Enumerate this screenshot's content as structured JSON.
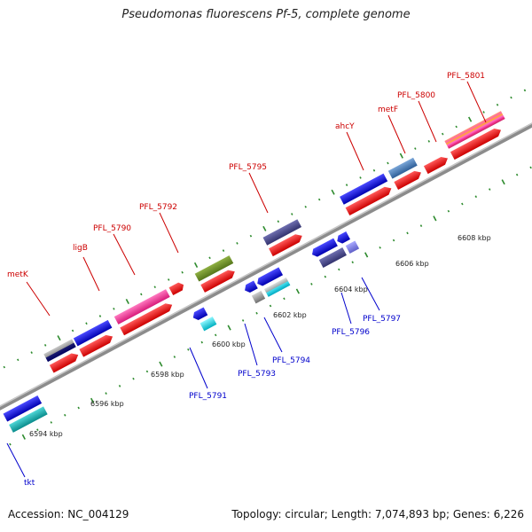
{
  "title": "Pseudomonas fluorescens Pf-5, complete genome",
  "footer": {
    "accession": "Accession: NC_004129",
    "summary": "Topology: circular; Length: 7,074,893 bp; Genes: 6,226"
  },
  "kbp_labels": [
    {
      "id": "kbp-6594",
      "text": "6594 kbp"
    },
    {
      "id": "kbp-6596",
      "text": "6596 kbp"
    },
    {
      "id": "kbp-6598",
      "text": "6598 kbp"
    },
    {
      "id": "kbp-6600",
      "text": "6600 kbp"
    },
    {
      "id": "kbp-6602",
      "text": "6602 kbp"
    },
    {
      "id": "kbp-6604",
      "text": "6604 kbp"
    },
    {
      "id": "kbp-6606",
      "text": "6606 kbp"
    },
    {
      "id": "kbp-6608",
      "text": "6608 kbp"
    }
  ],
  "forward_genes": [
    {
      "id": "metK",
      "text": "metK"
    },
    {
      "id": "ligB",
      "text": "ligB"
    },
    {
      "id": "PFL_5790",
      "text": "PFL_5790"
    },
    {
      "id": "PFL_5792",
      "text": "PFL_5792"
    },
    {
      "id": "PFL_5795",
      "text": "PFL_5795"
    },
    {
      "id": "ahcY",
      "text": "ahcY"
    },
    {
      "id": "metF",
      "text": "metF"
    },
    {
      "id": "PFL_5800",
      "text": "PFL_5800"
    },
    {
      "id": "PFL_5801",
      "text": "PFL_5801"
    }
  ],
  "reverse_genes": [
    {
      "id": "tkt",
      "text": "tkt"
    },
    {
      "id": "PFL_5791",
      "text": "PFL_5791"
    },
    {
      "id": "PFL_5793",
      "text": "PFL_5793"
    },
    {
      "id": "PFL_5794",
      "text": "PFL_5794"
    },
    {
      "id": "PFL_5796",
      "text": "PFL_5796"
    },
    {
      "id": "PFL_5797",
      "text": "PFL_5797"
    }
  ],
  "colors": {
    "backbone": "#8c8c8c",
    "tick": "#2e8b2e",
    "cds": "#ff0000",
    "forward_label": "#cc0000",
    "reverse_label": "#0000cc"
  }
}
